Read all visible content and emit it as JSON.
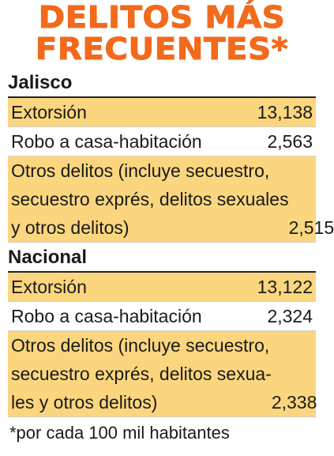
{
  "title": {
    "line1": "DELITOS MÁS",
    "line2": "FRECUENTES*"
  },
  "sections": [
    {
      "name": "Jalisco",
      "rows": [
        {
          "label": "Extorsión",
          "value": "13,138"
        },
        {
          "label": "Robo a casa-habitación",
          "value": "2,563"
        },
        {
          "label_lines": [
            "Otros delitos (incluye secuestro,",
            "secuestro exprés, delitos sexuales",
            "y otros delitos)"
          ],
          "value": "2,515"
        }
      ]
    },
    {
      "name": "Nacional",
      "rows": [
        {
          "label": "Extorsión",
          "value": "13,122"
        },
        {
          "label": "Robo a casa-habitación",
          "value": "2,324"
        },
        {
          "label_lines": [
            "Otros delitos (incluye secuestro,",
            "secuestro exprés, delitos sexua-",
            "les y otros delitos)"
          ],
          "value": "2,338"
        }
      ]
    }
  ],
  "footnote": "*por cada 100 mil habitantes",
  "colors": {
    "title": "#f26a1b",
    "shaded_row": "#fbd67e"
  }
}
